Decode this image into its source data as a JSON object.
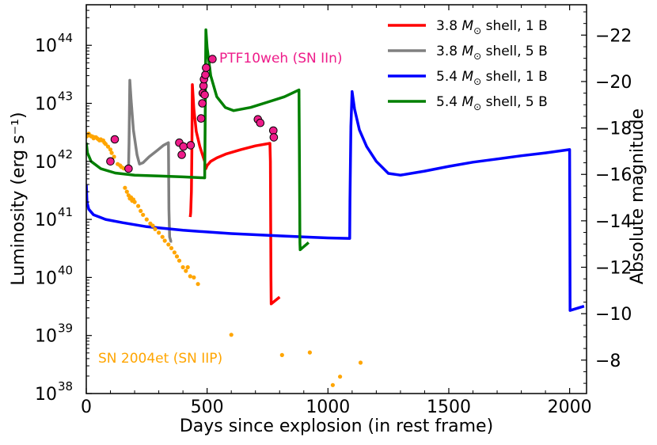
{
  "chart_data": {
    "type": "line",
    "x": {
      "label": "Days since explosion (in rest frame)",
      "range": [
        0,
        2070
      ],
      "ticks": [
        0,
        500,
        1000,
        1500,
        2000
      ],
      "tick_labels": [
        "0",
        "500",
        "1000",
        "1500",
        "2000"
      ]
    },
    "y_left": {
      "label": "Luminosity (erg s⁻¹)",
      "scale": "log",
      "range": [
        1e+38,
        5e+44
      ],
      "ticks": [
        38,
        39,
        40,
        41,
        42,
        43,
        44
      ],
      "tick_labels": [
        {
          "base": "10",
          "exp": "38"
        },
        {
          "base": "10",
          "exp": "39"
        },
        {
          "base": "10",
          "exp": "40"
        },
        {
          "base": "10",
          "exp": "41"
        },
        {
          "base": "10",
          "exp": "42"
        },
        {
          "base": "10",
          "exp": "43"
        },
        {
          "base": "10",
          "exp": "44"
        }
      ]
    },
    "y_right": {
      "label": "Absolute magnitude",
      "ticks": [
        -22,
        -20,
        -18,
        -16,
        -14,
        -12,
        -10,
        -8
      ],
      "tick_labels": [
        "−22",
        "−20",
        "−18",
        "−16",
        "−14",
        "−12",
        "−10",
        "−8"
      ]
    },
    "legend": {
      "position": "top-right",
      "entries": [
        {
          "name": "3.8 M⊙ shell, 1 B",
          "text_pre": "3.8 ",
          "text_m": "M",
          "text_sub": "⊙",
          "text_post": " shell, 1 B",
          "color": "#ff0000"
        },
        {
          "name": "3.8 M⊙ shell, 5 B",
          "text_pre": "3.8 ",
          "text_m": "M",
          "text_sub": "⊙",
          "text_post": " shell, 5 B",
          "color": "#808080"
        },
        {
          "name": "5.4 M⊙ shell, 1 B",
          "text_pre": "5.4 ",
          "text_m": "M",
          "text_sub": "⊙",
          "text_post": " shell, 1 B",
          "color": "#0000ff"
        },
        {
          "name": "5.4 M⊙ shell, 5 B",
          "text_pre": "5.4 ",
          "text_m": "M",
          "text_sub": "⊙",
          "text_post": " shell, 5 B",
          "color": "#008000"
        }
      ]
    },
    "annotations": [
      {
        "text": "PTF10weh (SN IIn)",
        "color": "#ee1c8a"
      },
      {
        "text": "SN 2004et (SN IIP)",
        "color": "#ffa500"
      }
    ],
    "series": [
      {
        "name": "3.8 M⊙ shell, 1 B",
        "color": "#ff0000",
        "points": [
          [
            430,
            1.1e+41
          ],
          [
            432,
            1.3e+41
          ],
          [
            435,
            3e+41
          ],
          [
            437,
            1.5e+42
          ],
          [
            439,
            2.1e+43
          ],
          [
            445,
            8e+42
          ],
          [
            455,
            3.3e+42
          ],
          [
            470,
            1.8e+42
          ],
          [
            485,
            1.15e+42
          ],
          [
            490,
            1e+42
          ],
          [
            492,
            8.5e+41
          ],
          [
            495,
            7.5e+41
          ],
          [
            500,
            8.5e+41
          ],
          [
            515,
            1e+42
          ],
          [
            540,
            1.15e+42
          ],
          [
            580,
            1.35e+42
          ],
          [
            640,
            1.6e+42
          ],
          [
            700,
            1.85e+42
          ],
          [
            760,
            2.05e+42
          ],
          [
            762,
            1e+42
          ],
          [
            764,
            1e+40
          ],
          [
            765,
            3.5e+39
          ],
          [
            800,
            4.6e+39
          ]
        ]
      },
      {
        "name": "3.8 M⊙ shell, 5 B",
        "color": "#808080",
        "points": [
          [
            175,
            8e+41
          ],
          [
            177,
            2e+42
          ],
          [
            180,
            2.5e+43
          ],
          [
            185,
            1.2e+43
          ],
          [
            195,
            3.5e+42
          ],
          [
            210,
            1.3e+42
          ],
          [
            220,
            9e+41
          ],
          [
            235,
            9.5e+41
          ],
          [
            260,
            1.2e+42
          ],
          [
            290,
            1.5e+42
          ],
          [
            320,
            1.9e+42
          ],
          [
            340,
            2.1e+42
          ],
          [
            342,
            1.5e+41
          ],
          [
            345,
            5e+40
          ],
          [
            350,
            4.2e+40
          ],
          [
            355,
            4.2e+40
          ]
        ]
      },
      {
        "name": "5.4 M⊙ shell, 1 B",
        "color": "#0000ff",
        "points": [
          [
            0,
            4e+41
          ],
          [
            3,
            2e+41
          ],
          [
            10,
            1.5e+41
          ],
          [
            30,
            1.2e+41
          ],
          [
            80,
            1e+41
          ],
          [
            150,
            8.8e+40
          ],
          [
            250,
            7.5e+40
          ],
          [
            400,
            6.5e+40
          ],
          [
            600,
            5.7e+40
          ],
          [
            800,
            5.2e+40
          ],
          [
            1000,
            4.8e+40
          ],
          [
            1090,
            4.7e+40
          ],
          [
            1091,
            2e+41
          ],
          [
            1095,
            4e+42
          ],
          [
            1100,
            1.6e+43
          ],
          [
            1110,
            8e+42
          ],
          [
            1130,
            3.5e+42
          ],
          [
            1160,
            1.8e+42
          ],
          [
            1200,
            1e+42
          ],
          [
            1250,
            6.2e+41
          ],
          [
            1300,
            5.8e+41
          ],
          [
            1400,
            6.8e+41
          ],
          [
            1500,
            8.2e+41
          ],
          [
            1600,
            9.7e+41
          ],
          [
            1700,
            1.1e+42
          ],
          [
            1800,
            1.25e+42
          ],
          [
            1900,
            1.4e+42
          ],
          [
            2000,
            1.6e+42
          ],
          [
            2001,
            1e+41
          ],
          [
            2002,
            2.7e+39
          ],
          [
            2060,
            3.2e+39
          ]
        ]
      },
      {
        "name": "5.4 M⊙ shell, 5 B",
        "color": "#008000",
        "points": [
          [
            0,
            2.1e+42
          ],
          [
            5,
            1.4e+42
          ],
          [
            20,
            1e+42
          ],
          [
            60,
            7.5e+41
          ],
          [
            120,
            6.3e+41
          ],
          [
            200,
            5.8e+41
          ],
          [
            300,
            5.6e+41
          ],
          [
            400,
            5.4e+41
          ],
          [
            490,
            5.2e+41
          ],
          [
            492,
            5e+42
          ],
          [
            495,
            1.85e+44
          ],
          [
            500,
            9e+43
          ],
          [
            515,
            3e+43
          ],
          [
            540,
            1.3e+43
          ],
          [
            575,
            8.5e+42
          ],
          [
            610,
            7.5e+42
          ],
          [
            680,
            8.5e+42
          ],
          [
            750,
            1.05e+43
          ],
          [
            820,
            1.3e+43
          ],
          [
            880,
            1.7e+43
          ],
          [
            882,
            1e+42
          ],
          [
            884,
            4e+40
          ],
          [
            885,
            3e+40
          ],
          [
            920,
            4e+40
          ]
        ]
      }
    ],
    "scatter": [
      {
        "name": "PTF10weh (SN IIn)",
        "color": "#ee1c8a",
        "edge": "#000000",
        "points": [
          [
            100,
            1e+42
          ],
          [
            118,
            2.4e+42
          ],
          [
            175,
            7.5e+41
          ],
          [
            385,
            2.1e+42
          ],
          [
            395,
            1.3e+42
          ],
          [
            402,
            1.8e+42
          ],
          [
            432,
            1.9e+42
          ],
          [
            475,
            5.5e+42
          ],
          [
            480,
            1e+43
          ],
          [
            482,
            1.5e+43
          ],
          [
            485,
            2e+43
          ],
          [
            487,
            2.6e+43
          ],
          [
            490,
            1.4e+43
          ],
          [
            493,
            3.1e+43
          ],
          [
            496,
            4.1e+43
          ],
          [
            522,
            5.8e+43
          ],
          [
            710,
            5.3e+42
          ],
          [
            720,
            4.6e+42
          ],
          [
            774,
            3.4e+42
          ],
          [
            776,
            2.6e+42
          ]
        ]
      },
      {
        "name": "SN 2004et (SN IIP)",
        "color": "#ffa500",
        "points": [
          [
            2,
            2.7e+42
          ],
          [
            10,
            3e+42
          ],
          [
            15,
            2.8e+42
          ],
          [
            20,
            2.7e+42
          ],
          [
            25,
            2.7e+42
          ],
          [
            30,
            2.5e+42
          ],
          [
            35,
            2.6e+42
          ],
          [
            40,
            2.6e+42
          ],
          [
            45,
            2.5e+42
          ],
          [
            50,
            2.4e+42
          ],
          [
            55,
            2.3e+42
          ],
          [
            60,
            2.4e+42
          ],
          [
            65,
            2.3e+42
          ],
          [
            70,
            2.3e+42
          ],
          [
            75,
            2.1e+42
          ],
          [
            80,
            2e+42
          ],
          [
            90,
            1.8e+42
          ],
          [
            100,
            1.6e+42
          ],
          [
            105,
            1.4e+42
          ],
          [
            115,
            1.2e+42
          ],
          [
            130,
            9e+41
          ],
          [
            140,
            8.5e+41
          ],
          [
            145,
            8e+41
          ],
          [
            155,
            7.6e+41
          ],
          [
            160,
            3.5e+41
          ],
          [
            168,
            3e+41
          ],
          [
            175,
            2.6e+41
          ],
          [
            180,
            2.3e+41
          ],
          [
            185,
            2.4e+41
          ],
          [
            190,
            2.1e+41
          ],
          [
            195,
            2.2e+41
          ],
          [
            200,
            2e+41
          ],
          [
            215,
            1.7e+41
          ],
          [
            225,
            1.4e+41
          ],
          [
            235,
            1.2e+41
          ],
          [
            250,
            1e+41
          ],
          [
            265,
            8.5e+40
          ],
          [
            275,
            7.8e+40
          ],
          [
            285,
            6.8e+40
          ],
          [
            300,
            5.9e+40
          ],
          [
            315,
            5e+40
          ],
          [
            325,
            4.3e+40
          ],
          [
            340,
            3.7e+40
          ],
          [
            352,
            3.2e+40
          ],
          [
            365,
            2.7e+40
          ],
          [
            375,
            2.3e+40
          ],
          [
            385,
            1.95e+40
          ],
          [
            400,
            1.5e+40
          ],
          [
            412,
            1.3e+40
          ],
          [
            430,
            1.05e+40
          ],
          [
            445,
            1e+40
          ],
          [
            420,
            1.5e+40
          ],
          [
            462,
            7.7e+39
          ],
          [
            600,
            1.03e+39
          ],
          [
            810,
            4.6e+38
          ],
          [
            925,
            5.1e+38
          ],
          [
            1020,
            1.4e+38
          ],
          [
            1050,
            1.95e+38
          ],
          [
            1135,
            3.4e+38
          ]
        ]
      }
    ]
  }
}
